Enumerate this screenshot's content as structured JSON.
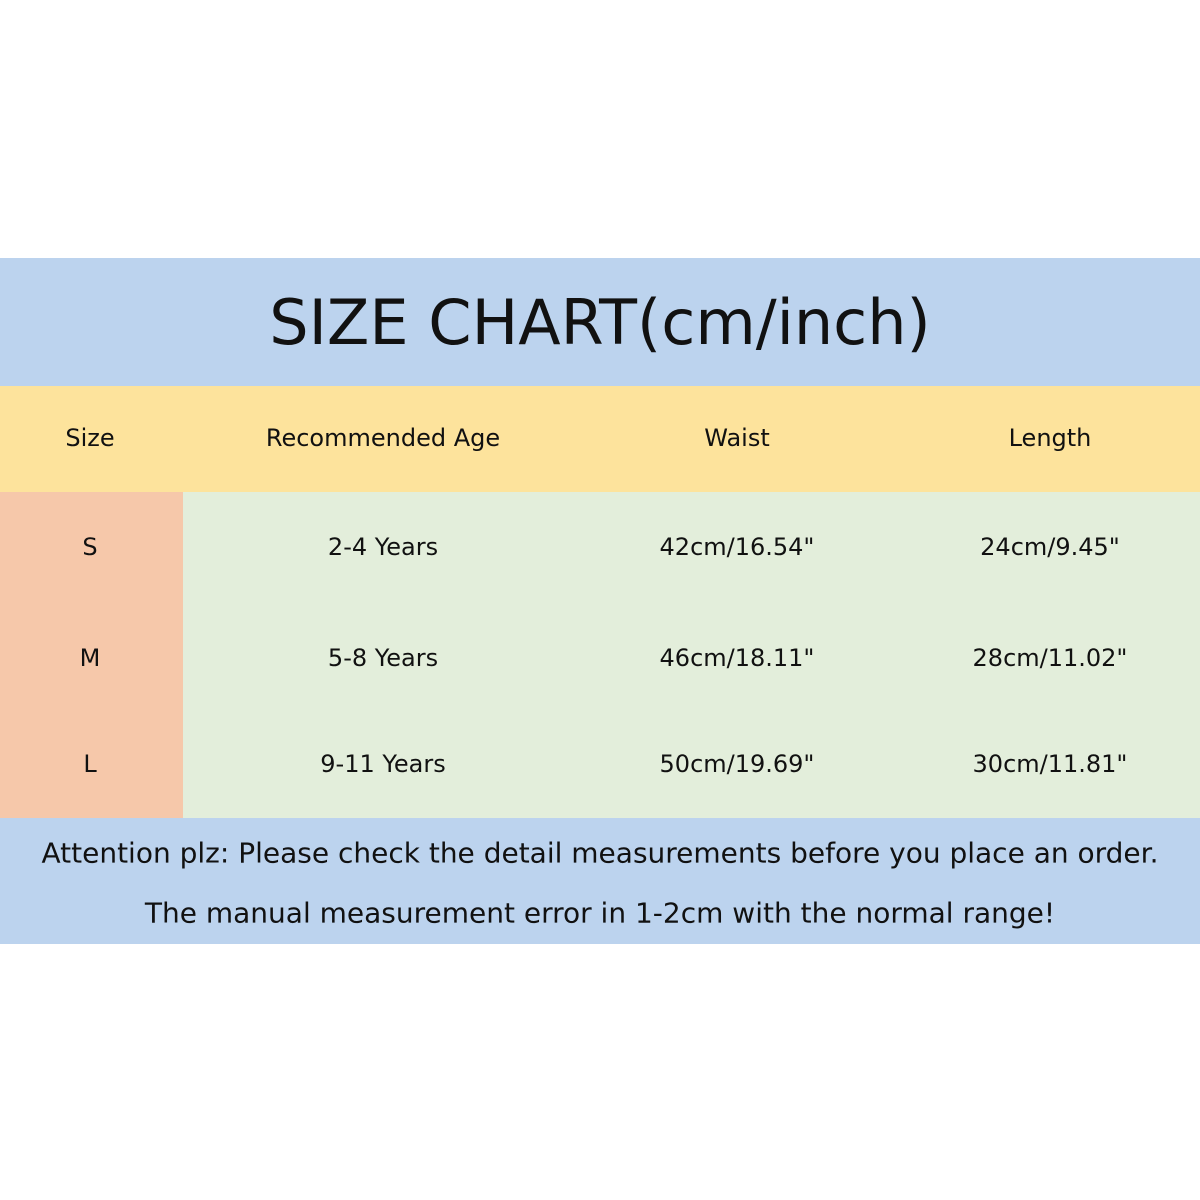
{
  "title": "SIZE CHART(cm/inch)",
  "table": {
    "header": [
      "Size",
      "Recommended Age",
      "Waist",
      "Length"
    ],
    "rows": [
      [
        "S",
        "2-4 Years",
        "42cm/16.54\"",
        "24cm/9.45\""
      ],
      [
        "M",
        "5-8 Years",
        "46cm/18.11\"",
        "28cm/11.02\""
      ],
      [
        "L",
        "9-11 Years",
        "50cm/19.69\"",
        "30cm/11.81\""
      ]
    ]
  },
  "notes": [
    "Attention plz:  Please check the detail measurements before you place an order.",
    "The manual measurement error in 1-2cm with the normal range!"
  ]
}
